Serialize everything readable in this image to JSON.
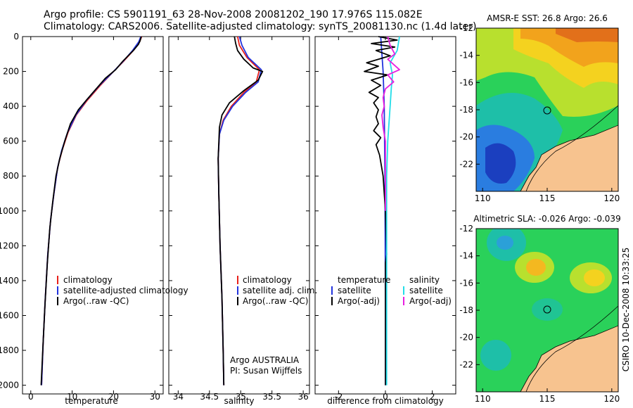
{
  "header": {
    "line1": "Argo profile: CS 5901191_63 28-Nov-2008 20081202_190 17.976S 115.082E",
    "line2": "Climatology: CARS2006. Satellite-adjusted climatology: synTS_20081130.nc (1.4d later)"
  },
  "side_label": "CSIRO 10-Dec-2008 10:33:25",
  "colors": {
    "climatology": "#e8201a",
    "satellite": "#2233dd",
    "argo": "#000000",
    "salinity_satellite": "#22dde8",
    "salinity_argo": "#e81ee0",
    "land": "#f7c38f"
  },
  "chart_data": [
    {
      "type": "line",
      "name": "temperature-profile",
      "xlabel": "temperature",
      "ylabel": "",
      "xlim": [
        -2,
        32
      ],
      "ylim": [
        2050,
        0
      ],
      "xticks": [
        0,
        10,
        20,
        30
      ],
      "yticks": [
        0,
        200,
        400,
        600,
        800,
        1000,
        1200,
        1400,
        1600,
        1800,
        2000
      ],
      "legend": [
        "climatology",
        "satellite-adjusted climatology",
        "Argo(..raw -QC)"
      ],
      "series": [
        {
          "name": "climatology",
          "color": "#e8201a",
          "points": [
            [
              26.8,
              0
            ],
            [
              26.3,
              30
            ],
            [
              24.8,
              80
            ],
            [
              22.5,
              140
            ],
            [
              20.0,
              200
            ],
            [
              16.8,
              280
            ],
            [
              13.5,
              370
            ],
            [
              11.0,
              450
            ],
            [
              9.0,
              550
            ],
            [
              7.6,
              650
            ],
            [
              6.5,
              750
            ],
            [
              5.6,
              900
            ],
            [
              4.8,
              1050
            ],
            [
              4.1,
              1250
            ],
            [
              3.5,
              1500
            ],
            [
              3.0,
              1750
            ],
            [
              2.6,
              2000
            ]
          ]
        },
        {
          "name": "satellite-adjusted climatology",
          "color": "#2233dd",
          "points": [
            [
              26.6,
              0
            ],
            [
              26.1,
              30
            ],
            [
              24.6,
              80
            ],
            [
              22.4,
              140
            ],
            [
              20.0,
              200
            ],
            [
              16.6,
              280
            ],
            [
              13.3,
              370
            ],
            [
              10.9,
              450
            ],
            [
              8.9,
              550
            ],
            [
              7.5,
              650
            ],
            [
              6.5,
              750
            ],
            [
              5.6,
              900
            ],
            [
              4.8,
              1050
            ],
            [
              4.1,
              1250
            ],
            [
              3.5,
              1500
            ],
            [
              3.0,
              1750
            ],
            [
              2.6,
              2000
            ]
          ]
        },
        {
          "name": "Argo(..raw -QC)",
          "color": "#000000",
          "points": [
            [
              26.7,
              0
            ],
            [
              26.4,
              25
            ],
            [
              26.0,
              45
            ],
            [
              24.8,
              80
            ],
            [
              22.3,
              140
            ],
            [
              20.5,
              190
            ],
            [
              18.0,
              240
            ],
            [
              15.8,
              300
            ],
            [
              13.6,
              360
            ],
            [
              11.5,
              420
            ],
            [
              9.6,
              500
            ],
            [
              8.2,
              600
            ],
            [
              7.0,
              700
            ],
            [
              6.1,
              800
            ],
            [
              5.3,
              950
            ],
            [
              4.6,
              1100
            ],
            [
              4.0,
              1300
            ],
            [
              3.4,
              1550
            ],
            [
              2.9,
              1800
            ],
            [
              2.5,
              2000
            ]
          ]
        }
      ]
    },
    {
      "type": "line",
      "name": "salinity-profile",
      "xlabel": "salinity",
      "ylabel": "",
      "xlim": [
        33.85,
        36.1
      ],
      "ylim": [
        2050,
        0
      ],
      "xticks": [
        34,
        34.5,
        35,
        35.5,
        36
      ],
      "legend": [
        "climatology",
        "satellite adj. clim.",
        "Argo(..raw -QC)"
      ],
      "annotation": [
        "Argo AUSTRALIA",
        "PI: Susan Wijffels"
      ],
      "series": [
        {
          "name": "climatology",
          "color": "#e8201a",
          "points": [
            [
              34.95,
              0
            ],
            [
              34.98,
              50
            ],
            [
              35.1,
              120
            ],
            [
              35.3,
              190
            ],
            [
              35.25,
              260
            ],
            [
              35.05,
              320
            ],
            [
              34.85,
              400
            ],
            [
              34.72,
              480
            ],
            [
              34.66,
              560
            ],
            [
              34.64,
              700
            ],
            [
              34.65,
              900
            ],
            [
              34.67,
              1200
            ],
            [
              34.7,
              1500
            ],
            [
              34.72,
              1800
            ],
            [
              34.73,
              2000
            ]
          ]
        },
        {
          "name": "satellite adj. clim.",
          "color": "#2233dd",
          "points": [
            [
              34.98,
              0
            ],
            [
              35.02,
              50
            ],
            [
              35.12,
              120
            ],
            [
              35.33,
              190
            ],
            [
              35.28,
              260
            ],
            [
              35.08,
              320
            ],
            [
              34.87,
              400
            ],
            [
              34.73,
              480
            ],
            [
              34.66,
              560
            ],
            [
              34.64,
              700
            ],
            [
              34.65,
              900
            ],
            [
              34.67,
              1200
            ],
            [
              34.7,
              1500
            ],
            [
              34.72,
              1800
            ],
            [
              34.73,
              2000
            ]
          ]
        },
        {
          "name": "Argo(..raw -QC)",
          "color": "#000000",
          "points": [
            [
              34.9,
              0
            ],
            [
              34.92,
              40
            ],
            [
              34.95,
              80
            ],
            [
              35.05,
              130
            ],
            [
              35.2,
              180
            ],
            [
              35.35,
              200
            ],
            [
              35.28,
              250
            ],
            [
              35.05,
              310
            ],
            [
              34.82,
              380
            ],
            [
              34.7,
              450
            ],
            [
              34.66,
              520
            ],
            [
              34.64,
              700
            ],
            [
              34.65,
              900
            ],
            [
              34.67,
              1200
            ],
            [
              34.7,
              1500
            ],
            [
              34.72,
              1800
            ],
            [
              34.73,
              2000
            ]
          ]
        }
      ]
    },
    {
      "type": "line",
      "name": "difference-profile",
      "xlabel": "difference from climatology",
      "ylabel": "",
      "xlim": [
        -3,
        3
      ],
      "ylim": [
        2050,
        0
      ],
      "xticks": [
        -2,
        0,
        2
      ],
      "legend": [
        "temperature",
        "satellite",
        "Argo(-adj)",
        "salinity",
        "satellite",
        "Argo(-adj)"
      ],
      "series": [
        {
          "name": "temperature satellite",
          "color": "#2233dd",
          "points": [
            [
              -0.2,
              0
            ],
            [
              -0.15,
              100
            ],
            [
              -0.1,
              200
            ],
            [
              -0.05,
              400
            ],
            [
              -0.02,
              800
            ],
            [
              -0.01,
              1200
            ],
            [
              0.0,
              1600
            ],
            [
              0.0,
              2000
            ]
          ]
        },
        {
          "name": "temperature Argo(-adj)",
          "color": "#000000",
          "points": [
            [
              -0.3,
              0
            ],
            [
              0.5,
              20
            ],
            [
              -0.6,
              40
            ],
            [
              0.4,
              60
            ],
            [
              -0.4,
              80
            ],
            [
              0.2,
              110
            ],
            [
              -0.8,
              150
            ],
            [
              -0.3,
              170
            ],
            [
              -0.9,
              200
            ],
            [
              0.1,
              220
            ],
            [
              -0.6,
              250
            ],
            [
              -0.2,
              280
            ],
            [
              -0.7,
              320
            ],
            [
              -0.3,
              350
            ],
            [
              -0.5,
              380
            ],
            [
              -0.3,
              420
            ],
            [
              -0.4,
              460
            ],
            [
              -0.3,
              500
            ],
            [
              -0.5,
              540
            ],
            [
              -0.2,
              580
            ],
            [
              -0.4,
              620
            ],
            [
              -0.25,
              680
            ],
            [
              -0.1,
              800
            ],
            [
              0.0,
              1000
            ],
            [
              0.05,
              1250
            ],
            [
              0.0,
              1300
            ],
            [
              0.0,
              1600
            ],
            [
              0.0,
              2000
            ]
          ]
        },
        {
          "name": "salinity satellite",
          "color": "#22dde8",
          "points": [
            [
              0.6,
              0
            ],
            [
              0.5,
              80
            ],
            [
              0.2,
              150
            ],
            [
              0.3,
              220
            ],
            [
              0.25,
              300
            ],
            [
              0.2,
              400
            ],
            [
              0.15,
              500
            ],
            [
              0.1,
              600
            ],
            [
              0.05,
              800
            ],
            [
              0.05,
              1000
            ],
            [
              0.05,
              1500
            ],
            [
              0.05,
              2000
            ]
          ]
        },
        {
          "name": "salinity Argo(-adj)",
          "color": "#e81ee0",
          "points": [
            [
              0.1,
              0
            ],
            [
              0.2,
              50
            ],
            [
              0.4,
              100
            ],
            [
              0.1,
              130
            ],
            [
              0.6,
              190
            ],
            [
              0.1,
              220
            ],
            [
              0.35,
              260
            ],
            [
              0.0,
              300
            ],
            [
              -0.1,
              350
            ],
            [
              -0.05,
              400
            ],
            [
              -0.15,
              450
            ],
            [
              -0.1,
              520
            ],
            [
              0.0,
              600
            ],
            [
              0.0,
              800
            ],
            [
              0.0,
              1000
            ]
          ]
        }
      ]
    },
    {
      "type": "heatmap",
      "name": "sst-map",
      "title": "AMSR-E SST: 26.8 Argo: 26.6",
      "xlim": [
        109.5,
        120.5
      ],
      "ylim": [
        -24,
        -12
      ],
      "xticks": [
        110,
        115,
        120
      ],
      "yticks": [
        -12,
        -14,
        -16,
        -18,
        -20,
        -22
      ],
      "argo_position": [
        115.08,
        -17.98
      ]
    },
    {
      "type": "heatmap",
      "name": "sla-map",
      "title": "Altimetric SLA: -0.026 Argo: -0.039",
      "xlim": [
        109.5,
        120.5
      ],
      "ylim": [
        -24,
        -12
      ],
      "xticks": [
        110,
        115,
        120
      ],
      "yticks": [
        -12,
        -14,
        -16,
        -18,
        -20,
        -22
      ],
      "argo_position": [
        115.08,
        -17.98
      ]
    }
  ]
}
